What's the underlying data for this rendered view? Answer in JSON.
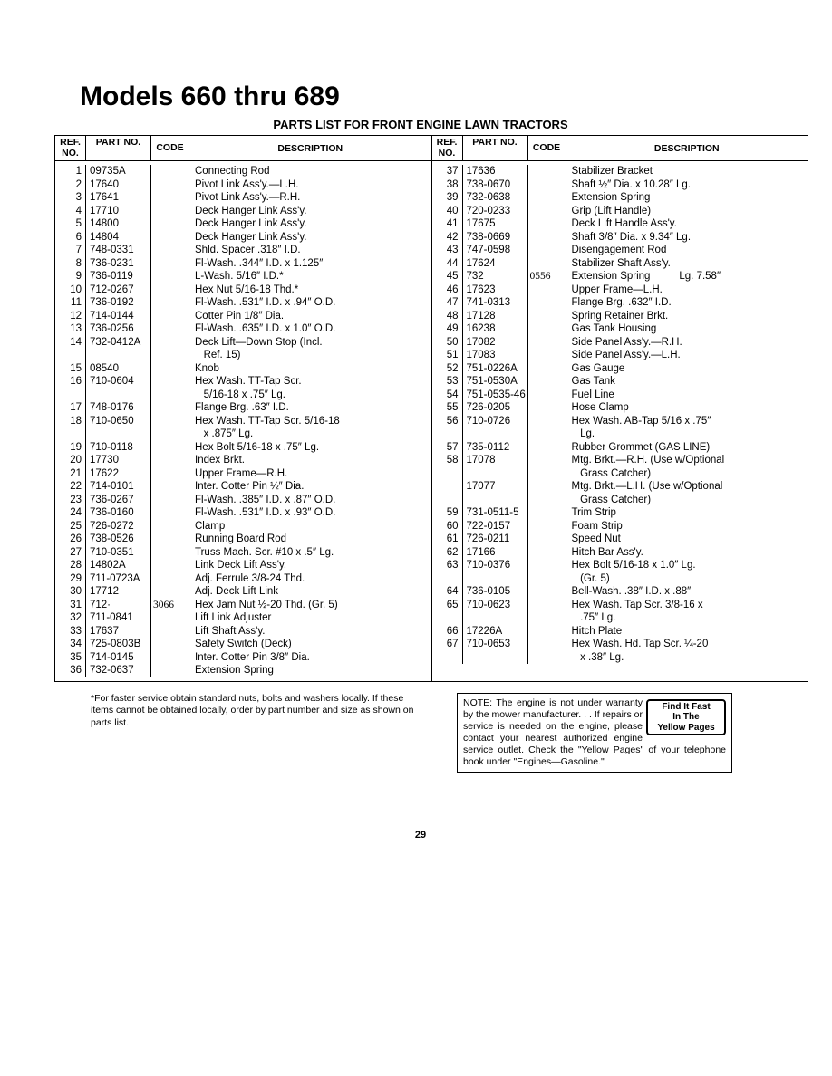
{
  "title": "Models 660 thru 689",
  "subtitle": "PARTS LIST FOR FRONT ENGINE LAWN TRACTORS",
  "headers": {
    "ref": "REF.\nNO.",
    "part": "PART\nNO.",
    "code": "CODE",
    "desc": "DESCRIPTION"
  },
  "left": {
    "ref": [
      "1",
      "2",
      "3",
      "4",
      "5",
      "6",
      "7",
      "8",
      "9",
      "10",
      "11",
      "12",
      "13",
      "14",
      "",
      "15",
      "16",
      "",
      "17",
      "18",
      "",
      "19",
      "20",
      "21",
      "22",
      "23",
      "24",
      "25",
      "26",
      "27",
      "28",
      "29",
      "30",
      "31",
      "32",
      "33",
      "34",
      "35",
      "36"
    ],
    "part": [
      "09735A",
      "17640",
      "17641",
      "17710",
      "14800",
      "14804",
      "748-0331",
      "736-0231",
      "736-0119",
      "712-0267",
      "736-0192",
      "714-0144",
      "736-0256",
      "732-0412A",
      "",
      "08540",
      "710-0604",
      "",
      "748-0176",
      "710-0650",
      "",
      "710-0118",
      "17730",
      "17622",
      "714-0101",
      "736-0267",
      "736-0160",
      "726-0272",
      "738-0526",
      "710-0351",
      "14802A",
      "711-0723A",
      "17712",
      "712·",
      "711-0841",
      "17637",
      "725-0803B",
      "714-0145",
      "732-0637"
    ],
    "code": [
      "",
      "",
      "",
      "",
      "",
      "",
      "",
      "",
      "",
      "",
      "",
      "",
      "",
      "",
      "",
      "",
      "",
      "",
      "",
      "",
      "",
      "",
      "",
      "",
      "",
      "",
      "",
      "",
      "",
      "",
      "",
      "",
      "",
      "3066",
      "",
      "",
      "",
      "",
      ""
    ],
    "desc": [
      "Connecting Rod",
      "Pivot Link Ass'y.—L.H.",
      "Pivot Link Ass'y.—R.H.",
      "Deck Hanger Link Ass'y.",
      "Deck Hanger Link Ass'y.",
      "Deck Hanger Link Ass'y.",
      "Shld. Spacer .318″ I.D.",
      "Fl-Wash. .344″ I.D. x 1.125″",
      "L-Wash. 5/16″ I.D.*",
      "Hex Nut 5/16-18 Thd.*",
      "Fl-Wash. .531″ I.D. x .94″ O.D.",
      "Cotter Pin 1/8″ Dia.",
      "Fl-Wash. .635″ I.D. x 1.0″ O.D.",
      "Deck Lift—Down Stop (Incl.",
      "   Ref. 15)",
      "Knob",
      "Hex Wash. TT-Tap Scr.",
      "   5/16-18 x .75″ Lg.",
      "Flange Brg. .63″ I.D.",
      "Hex Wash. TT-Tap Scr. 5/16-18",
      "   x .875″ Lg.",
      "Hex Bolt 5/16-18 x .75″ Lg.",
      "Index Brkt.",
      "Upper Frame—R.H.",
      "Inter. Cotter Pin ½″ Dia.",
      "Fl-Wash. .385″ I.D. x .87″ O.D.",
      "Fl-Wash. .531″ I.D. x .93″ O.D.",
      "Clamp",
      "Running Board Rod",
      "Truss Mach. Scr. #10 x .5″ Lg.",
      "Link Deck Lift Ass'y.",
      "Adj. Ferrule 3/8-24 Thd.",
      "Adj. Deck Lift Link",
      "Hex Jam Nut ½-20 Thd. (Gr. 5)",
      "Lift Link Adjuster",
      "Lift Shaft Ass'y.",
      "Safety Switch (Deck)",
      "Inter. Cotter Pin 3/8″ Dia.",
      "Extension Spring"
    ]
  },
  "right": {
    "ref": [
      "37",
      "38",
      "39",
      "40",
      "41",
      "42",
      "43",
      "44",
      "45",
      "46",
      "47",
      "48",
      "49",
      "50",
      "51",
      "52",
      "53",
      "54",
      "55",
      "56",
      "",
      "57",
      "58",
      "",
      "",
      "",
      "59",
      "60",
      "61",
      "62",
      "63",
      "",
      "64",
      "65",
      "",
      "66",
      "67",
      ""
    ],
    "part": [
      "17636",
      "738-0670",
      "732-0638",
      "720-0233",
      "17675",
      "738-0669",
      "747-0598",
      "17624",
      "732",
      "17623",
      "741-0313",
      "17128",
      "16238",
      "17082",
      "17083",
      "751-0226A",
      "751-0530A",
      "751-0535-46",
      "726-0205",
      "710-0726",
      "",
      "735-0112",
      "17078",
      "",
      "17077",
      "",
      "731-0511-5",
      "722-0157",
      "726-0211",
      "17166",
      "710-0376",
      "",
      "736-0105",
      "710-0623",
      "",
      "17226A",
      "710-0653",
      ""
    ],
    "code": [
      "",
      "",
      "",
      "",
      "",
      "",
      "",
      "",
      "0556",
      "",
      "",
      "",
      "",
      "",
      "",
      "",
      "",
      "",
      "",
      "",
      "",
      "",
      "",
      "",
      "",
      "",
      "",
      "",
      "",
      "",
      "",
      "",
      "",
      "",
      "",
      "",
      "",
      ""
    ],
    "desc": [
      "Stabilizer Bracket",
      "Shaft ½″ Dia. x 10.28″ Lg.",
      "Extension Spring",
      "Grip (Lift Handle)",
      "Deck Lift Handle Ass'y.",
      "Shaft 3/8″ Dia. x 9.34″ Lg.",
      "Disengagement Rod",
      "Stabilizer Shaft Ass'y.",
      "Extension Spring          Lg. 7.58″",
      "Upper Frame—L.H.",
      "Flange Brg. .632″ I.D.",
      "Spring Retainer Brkt.",
      "Gas Tank Housing",
      "Side Panel Ass'y.—R.H.",
      "Side Panel Ass'y.—L.H.",
      "Gas Gauge",
      "Gas Tank",
      "Fuel Line",
      "Hose Clamp",
      "Hex Wash. AB-Tap 5/16 x .75″",
      "   Lg.",
      "Rubber Grommet (GAS LINE)",
      "Mtg. Brkt.—R.H. (Use w/Optional",
      "   Grass Catcher)",
      "Mtg. Brkt.—L.H. (Use w/Optional",
      "   Grass Catcher)",
      "Trim Strip",
      "Foam Strip",
      "Speed Nut",
      "Hitch Bar Ass'y.",
      "Hex Bolt 5/16-18 x 1.0″ Lg.",
      "   (Gr. 5)",
      "Bell-Wash. .38″ I.D. x .88″",
      "Hex Wash. Tap Scr. 3/8-16 x",
      "   .75″ Lg.",
      "Hitch Plate",
      "Hex Wash. Hd. Tap Scr. ¼-20",
      "   x .38″ Lg."
    ]
  },
  "footnote": "*For faster service obtain standard nuts, bolts and washers locally. If these items cannot be obtained locally, order by part number and size as shown on parts list.",
  "note_box": "NOTE: The engine is not under warranty by the mower manufacturer. . . If repairs or service is needed on the engine, please contact your nearest authorized engine service outlet. Check the \"Yellow Pages\" of your telephone book under \"Engines—Gasoline.\"",
  "find_box": [
    "Find It Fast",
    "In The",
    "Yellow Pages"
  ],
  "page_number": "29"
}
